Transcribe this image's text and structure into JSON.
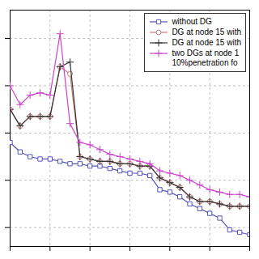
{
  "chart_data": {
    "type": "line",
    "x": [
      1,
      2,
      3,
      4,
      5,
      6,
      7,
      8,
      9,
      10,
      11,
      12,
      13,
      14,
      15,
      16,
      17,
      18,
      19,
      20,
      21,
      22,
      23,
      24,
      25
    ],
    "series": [
      {
        "name": "without DG",
        "color": "#5555bb",
        "marker": "square",
        "values": [
          0.56,
          0.52,
          0.5,
          0.49,
          0.49,
          0.48,
          0.47,
          0.47,
          0.46,
          0.46,
          0.45,
          0.44,
          0.43,
          0.43,
          0.42,
          0.36,
          0.35,
          0.33,
          0.3,
          0.28,
          0.26,
          0.24,
          0.19,
          0.18,
          0.17
        ]
      },
      {
        "name": "DG at node 15 with",
        "color": "#cc7777",
        "marker": "circle",
        "values": [
          0.7,
          0.63,
          0.67,
          0.67,
          0.67,
          0.88,
          0.85,
          0.5,
          0.49,
          0.48,
          0.48,
          0.47,
          0.47,
          0.46,
          0.46,
          0.41,
          0.39,
          0.37,
          0.33,
          0.31,
          0.31,
          0.3,
          0.29,
          0.29,
          0.29
        ]
      },
      {
        "name": "DG at node 15 with",
        "color": "#333333",
        "marker": "plus",
        "values": [
          0.7,
          0.63,
          0.67,
          0.67,
          0.67,
          0.88,
          0.9,
          0.5,
          0.49,
          0.48,
          0.48,
          0.47,
          0.47,
          0.46,
          0.46,
          0.41,
          0.39,
          0.37,
          0.33,
          0.31,
          0.31,
          0.3,
          0.29,
          0.29,
          0.29
        ]
      },
      {
        "name": "two DGs at node 1\n10%penetration fo",
        "color": "#cc44cc",
        "marker": "plus",
        "values": [
          0.8,
          0.72,
          0.76,
          0.77,
          0.76,
          1.02,
          0.64,
          0.56,
          0.55,
          0.53,
          0.51,
          0.5,
          0.49,
          0.48,
          0.47,
          0.44,
          0.43,
          0.42,
          0.4,
          0.38,
          0.36,
          0.35,
          0.34,
          0.34,
          0.33
        ]
      }
    ],
    "xlim": [
      1,
      25
    ],
    "ylim": [
      0.12,
      1.12
    ],
    "xticks": [
      1,
      5,
      9,
      13,
      17,
      21,
      25
    ],
    "yticks": [
      0.2,
      0.4,
      0.6,
      0.8,
      1.0
    ],
    "grid": true,
    "legend": "upper right",
    "tick_labels": false
  }
}
